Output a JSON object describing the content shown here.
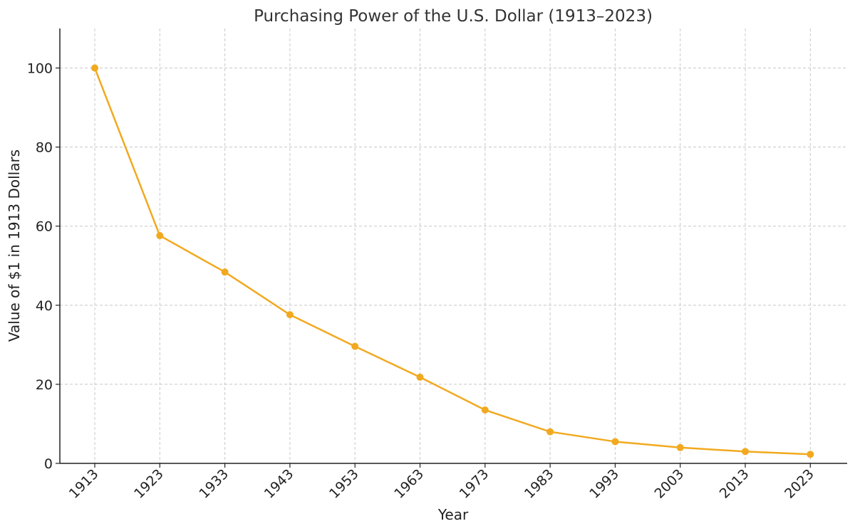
{
  "chart_data": {
    "type": "line",
    "title": "Purchasing Power of the U.S. Dollar (1913–2023)",
    "xlabel": "Year",
    "ylabel": "Value of $1 in 1913 Dollars",
    "categories": [
      "1913",
      "1923",
      "1933",
      "1943",
      "1953",
      "1963",
      "1973",
      "1983",
      "1993",
      "2003",
      "2013",
      "2023"
    ],
    "series": [
      {
        "name": "Value of $1 in 1913 Dollars",
        "values": [
          100,
          57.6,
          48.4,
          37.6,
          29.6,
          21.8,
          13.5,
          8.0,
          5.5,
          4.0,
          3.0,
          2.3
        ],
        "color": "#f2a91f"
      }
    ],
    "ylim": [
      0,
      110
    ],
    "yticks": [
      0,
      20,
      40,
      60,
      80,
      100
    ],
    "grid": true
  }
}
